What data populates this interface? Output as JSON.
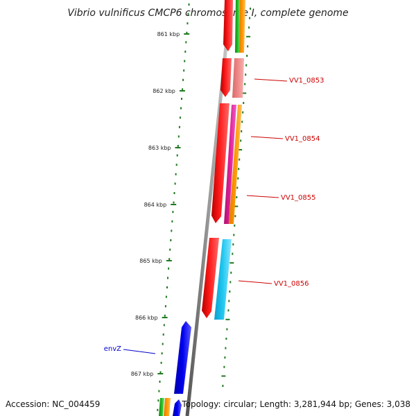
{
  "title": "Vibrio vulnificus CMCP6 chromosome I, complete genome",
  "footer": {
    "accession": "Accession: NC_004459",
    "summary": "Topology: circular; Length: 3,281,944 bp; Genes: 3,038"
  },
  "ticks": [
    {
      "label": "861 kbp"
    },
    {
      "label": "862 kbp"
    },
    {
      "label": "863 kbp"
    },
    {
      "label": "864 kbp"
    },
    {
      "label": "865 kbp"
    },
    {
      "label": "866 kbp"
    },
    {
      "label": "867 kbp"
    }
  ],
  "gene_labels": [
    {
      "text": "VV1_0853",
      "color": "#cc0000"
    },
    {
      "text": "VV1_0854",
      "color": "#cc0000"
    },
    {
      "text": "VV1_0855",
      "color": "#cc0000"
    },
    {
      "text": "VV1_0856",
      "color": "#cc0000"
    },
    {
      "text": "envZ",
      "color": "#0000cc"
    }
  ],
  "colors": {
    "backbone": "#8a8a8a",
    "ruler": "#1f7a1f",
    "red": "#ff0000",
    "salmon": "#f08080",
    "magenta": "#e0209a",
    "orange": "#ff9a00",
    "cyan": "#22c8f0",
    "blue": "#0000ee",
    "green": "#22bb22"
  }
}
